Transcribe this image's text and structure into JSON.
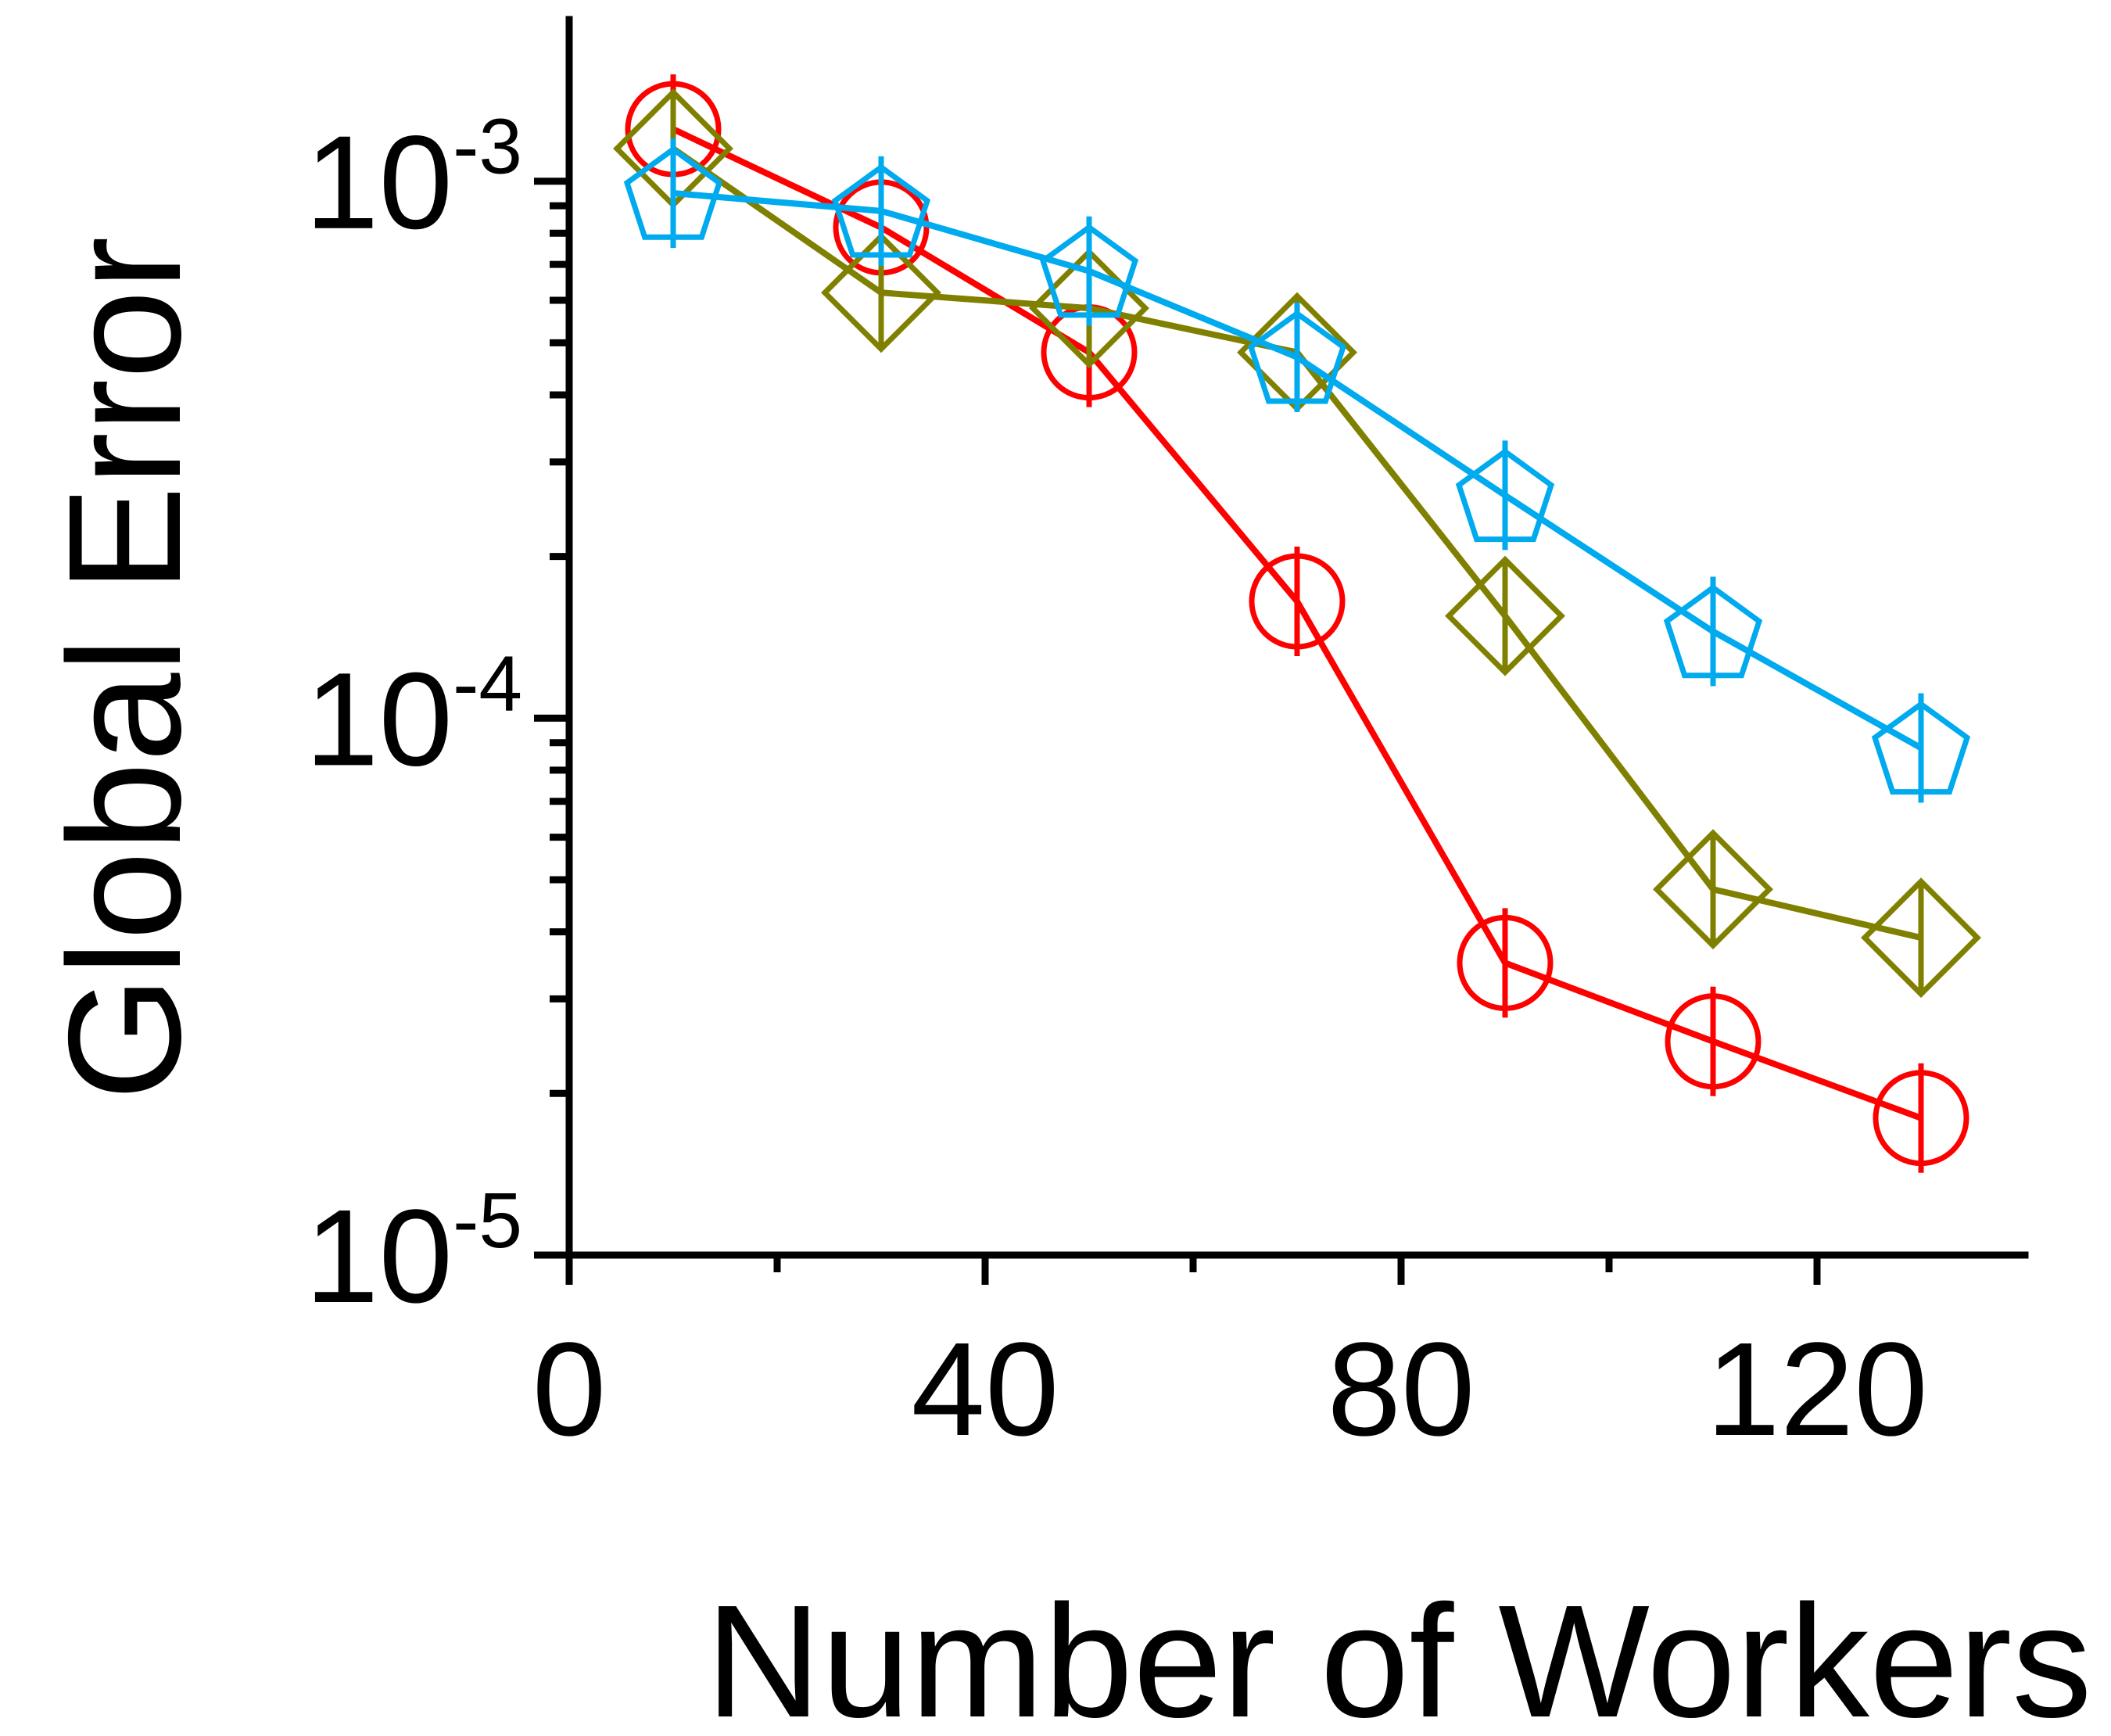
{
  "chart_data": {
    "type": "line",
    "xlabel": "Number of Workers",
    "ylabel": "Global Error",
    "xlim": [
      0,
      140
    ],
    "ylim": [
      1e-05,
      0.002
    ],
    "y_scale": "log",
    "x_ticks": [
      {
        "value": 0,
        "label": "0"
      },
      {
        "value": 40,
        "label": "40"
      },
      {
        "value": 80,
        "label": "80"
      },
      {
        "value": 120,
        "label": "120"
      }
    ],
    "x_minor_ticks": [
      20,
      60,
      100
    ],
    "y_ticks": [
      {
        "value": 0.001,
        "base": "10",
        "exp": "-3"
      },
      {
        "value": 0.0001,
        "base": "10",
        "exp": "-4"
      },
      {
        "value": 1e-05,
        "base": "10",
        "exp": "-5"
      }
    ],
    "grid": false,
    "x": [
      10,
      30,
      50,
      70,
      90,
      110,
      130
    ],
    "series": [
      {
        "color": "#ff0000",
        "marker": "circle",
        "values": [
          0.00125,
          0.00082,
          0.00048,
          0.000165,
          3.5e-05,
          2.5e-05,
          1.8e-05
        ]
      },
      {
        "color": "#808000",
        "marker": "diamond",
        "values": [
          0.00115,
          0.00062,
          0.00058,
          0.00048,
          0.000155,
          4.8e-05,
          3.9e-05
        ]
      },
      {
        "color": "#00aaee",
        "marker": "pentagon",
        "values": [
          0.00095,
          0.00088,
          0.00068,
          0.00047,
          0.00026,
          0.000145,
          8.8e-05
        ]
      }
    ]
  }
}
